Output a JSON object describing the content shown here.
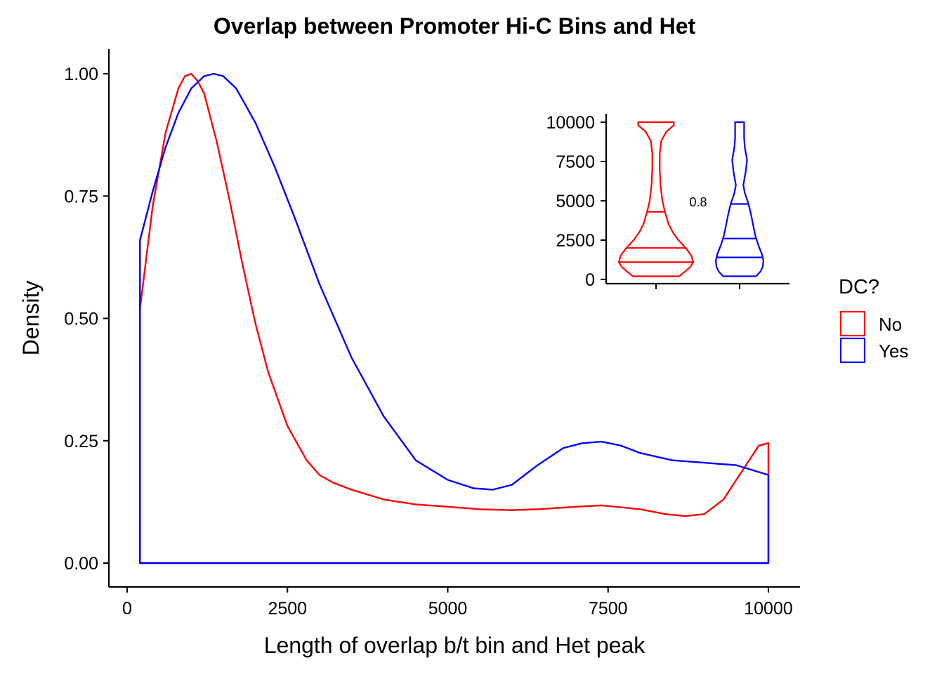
{
  "chart_data": [
    {
      "type": "line",
      "subtype": "density",
      "title": "Overlap between Promoter Hi-C Bins and Het",
      "xlabel": "Length of overlap b/t bin and Het peak",
      "ylabel": "Density",
      "xlim": [
        0,
        10000
      ],
      "ylim": [
        0,
        1.0
      ],
      "x_ticks": [
        0,
        2500,
        5000,
        7500,
        10000
      ],
      "x_tick_labels": [
        "0",
        "2500",
        "5000",
        "7500",
        "10000"
      ],
      "y_ticks": [
        0,
        0.25,
        0.5,
        0.75,
        1.0
      ],
      "y_tick_labels": [
        "0.00",
        "0.25",
        "0.50",
        "0.75",
        "1.00"
      ],
      "grid": false,
      "legend": {
        "title": "DC?",
        "position": "right",
        "entries": [
          "No",
          "Yes"
        ]
      },
      "series": [
        {
          "name": "No",
          "color": "#ff0000",
          "x": [
            200,
            400,
            600,
            800,
            900,
            1000,
            1100,
            1200,
            1400,
            1600,
            1800,
            2000,
            2200,
            2500,
            2800,
            3000,
            3200,
            3500,
            4000,
            4500,
            5000,
            5500,
            6000,
            6400,
            7000,
            7400,
            8000,
            8400,
            8700,
            9000,
            9300,
            9500,
            9700,
            9850,
            10000
          ],
          "y": [
            0.52,
            0.73,
            0.88,
            0.97,
            0.995,
            1.0,
            0.985,
            0.96,
            0.86,
            0.74,
            0.61,
            0.49,
            0.39,
            0.28,
            0.21,
            0.18,
            0.165,
            0.15,
            0.13,
            0.12,
            0.115,
            0.11,
            0.108,
            0.11,
            0.115,
            0.118,
            0.11,
            0.1,
            0.096,
            0.1,
            0.13,
            0.17,
            0.21,
            0.24,
            0.245
          ]
        },
        {
          "name": "Yes",
          "color": "#0000ff",
          "x": [
            200,
            400,
            600,
            800,
            1000,
            1200,
            1350,
            1500,
            1700,
            2000,
            2300,
            2600,
            3000,
            3500,
            4000,
            4500,
            5000,
            5400,
            5700,
            6000,
            6400,
            6800,
            7100,
            7400,
            7700,
            8000,
            8500,
            9000,
            9500,
            10000
          ],
          "y": [
            0.66,
            0.76,
            0.85,
            0.92,
            0.97,
            0.995,
            1.0,
            0.995,
            0.97,
            0.9,
            0.81,
            0.71,
            0.57,
            0.42,
            0.3,
            0.21,
            0.17,
            0.153,
            0.15,
            0.16,
            0.2,
            0.235,
            0.245,
            0.248,
            0.24,
            0.225,
            0.21,
            0.205,
            0.2,
            0.18
          ]
        }
      ]
    },
    {
      "type": "violin",
      "inset": true,
      "ylim": [
        0,
        10000
      ],
      "y_ticks": [
        0,
        2500,
        5000,
        7500,
        10000
      ],
      "y_tick_labels": [
        "0",
        "2500",
        "5000",
        "7500",
        "10000"
      ],
      "annotation": "0.8",
      "groups": [
        {
          "name": "No",
          "color": "#ff0000",
          "quantiles": [
            1100,
            2000,
            4300
          ],
          "profile_y": [
            200,
            500,
            800,
            1100,
            1500,
            2000,
            2500,
            3000,
            3500,
            4300,
            5000,
            6000,
            7000,
            8000,
            8800,
            9400,
            9800,
            10000
          ],
          "profile_w": [
            0.62,
            0.78,
            0.92,
            1.0,
            0.95,
            0.8,
            0.6,
            0.45,
            0.34,
            0.24,
            0.17,
            0.12,
            0.1,
            0.1,
            0.14,
            0.28,
            0.48,
            0.48
          ]
        },
        {
          "name": "Yes",
          "color": "#0000ff",
          "quantiles": [
            1400,
            2600,
            4800
          ],
          "profile_y": [
            200,
            500,
            800,
            1200,
            1600,
            2200,
            2800,
            3500,
            4200,
            4800,
            5500,
            6000,
            6800,
            7600,
            8400,
            9000,
            9600,
            10000
          ],
          "profile_w": [
            0.44,
            0.56,
            0.62,
            0.64,
            0.6,
            0.5,
            0.42,
            0.36,
            0.3,
            0.24,
            0.14,
            0.1,
            0.16,
            0.2,
            0.14,
            0.12,
            0.12,
            0.12
          ]
        }
      ]
    }
  ]
}
